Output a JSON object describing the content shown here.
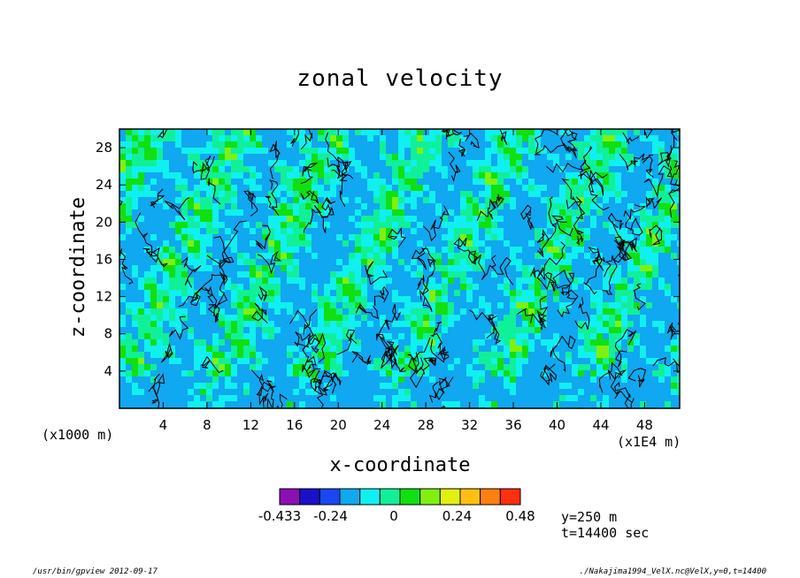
{
  "chart_data": {
    "type": "heatmap",
    "title": "zonal velocity",
    "xlabel": "x-coordinate",
    "ylabel": "z-coordinate",
    "x_unit_label": "(x1E4 m)",
    "y_unit_label": "(x1000 m)",
    "xlim": [
      0,
      51.2
    ],
    "ylim": [
      0,
      30
    ],
    "x_ticks": [
      "4",
      "8",
      "12",
      "16",
      "20",
      "24",
      "28",
      "32",
      "36",
      "40",
      "44",
      "48"
    ],
    "y_ticks": [
      "4",
      "8",
      "12",
      "16",
      "20",
      "24",
      "28"
    ],
    "grid": false,
    "colorbar": {
      "min": -0.433,
      "max": 0.48,
      "tick_labels": [
        "-0.433",
        "-0.24",
        "0",
        "0.24",
        "0.48"
      ],
      "colors": [
        "#8b10b3",
        "#1a10c8",
        "#1a48f0",
        "#10a8f0",
        "#10f0f0",
        "#10f098",
        "#10e010",
        "#80f010",
        "#e0f010",
        "#ffc010",
        "#ff8010",
        "#ff3010"
      ]
    },
    "info": {
      "y_slice": "y=250 m",
      "time": "t=14400 sec"
    }
  },
  "footer": {
    "left": "/usr/bin/gpview   2012-09-17",
    "right": "./Nakajima1994_VelX.nc@VelX,y=0,t=14400"
  }
}
